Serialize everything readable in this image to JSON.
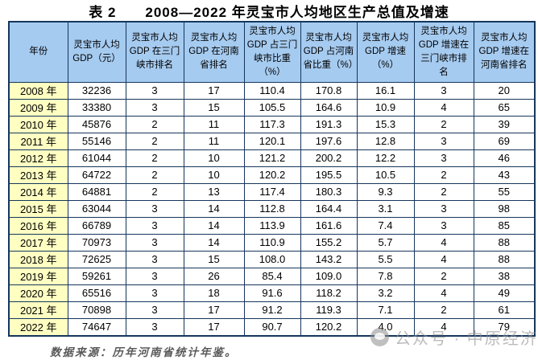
{
  "page": {
    "title": "表 2　　2008—2022 年灵宝市人均地区生产总值及增速",
    "source_note": "数据来源：历年河南省统计年鉴。",
    "watermark_text": "公众号 · 中原经济",
    "watermark_icon": "wechat-public-account-logo"
  },
  "colors": {
    "header_bg": "#a6cbf0",
    "year_column_bg": "#ffffc2",
    "grid_border": "#16365c",
    "watermark_gray": "#919191"
  },
  "table": {
    "columns": [
      "年份",
      "灵宝市人均 GDP（元）",
      "灵宝市人均 GDP 在三门峡市排名",
      "灵宝市人均 GDP 在河南省排名",
      "灵宝市人均 GDP 占三门峡市比重（%）",
      "灵宝市人均 GDP 占河南省比重（%）",
      "灵宝市人均 GDP 增速（%）",
      "灵宝市人均 GDP 增速在三门峡市排名",
      "灵宝市人均 GDP 增速在河南省排名"
    ],
    "rows": [
      [
        "2008 年",
        "32236",
        "3",
        "17",
        "110.4",
        "170.8",
        "16.1",
        "3",
        "20"
      ],
      [
        "2009 年",
        "33380",
        "3",
        "15",
        "105.5",
        "164.6",
        "10.9",
        "4",
        "65"
      ],
      [
        "2010 年",
        "45876",
        "2",
        "11",
        "117.3",
        "191.3",
        "15.3",
        "2",
        "39"
      ],
      [
        "2011 年",
        "55146",
        "2",
        "11",
        "120.1",
        "197.6",
        "12.8",
        "3",
        "69"
      ],
      [
        "2012 年",
        "61044",
        "2",
        "10",
        "121.2",
        "200.2",
        "12.2",
        "3",
        "46"
      ],
      [
        "2013 年",
        "64722",
        "2",
        "10",
        "120.2",
        "195.5",
        "10.5",
        "2",
        "43"
      ],
      [
        "2014 年",
        "64881",
        "2",
        "13",
        "117.4",
        "180.3",
        "9.3",
        "2",
        "55"
      ],
      [
        "2015 年",
        "63044",
        "3",
        "14",
        "112.8",
        "164.4",
        "3.1",
        "3",
        "98"
      ],
      [
        "2016 年",
        "66789",
        "3",
        "14",
        "113.9",
        "161.6",
        "7.4",
        "3",
        "85"
      ],
      [
        "2017 年",
        "70973",
        "3",
        "14",
        "110.9",
        "155.2",
        "5.7",
        "4",
        "88"
      ],
      [
        "2018 年",
        "72625",
        "3",
        "15",
        "108.0",
        "143.2",
        "5.5",
        "4",
        "88"
      ],
      [
        "2019 年",
        "59261",
        "3",
        "26",
        "85.4",
        "109.0",
        "7.8",
        "2",
        "38"
      ],
      [
        "2020 年",
        "65516",
        "3",
        "18",
        "91.6",
        "118.2",
        "3.2",
        "4",
        "49"
      ],
      [
        "2021 年",
        "70898",
        "3",
        "17",
        "91.2",
        "119.3",
        "7.1",
        "2",
        "61"
      ],
      [
        "2022 年",
        "74647",
        "3",
        "17",
        "90.7",
        "120.2",
        "4.0",
        "4",
        "79"
      ]
    ]
  },
  "chart_data": {
    "type": "table",
    "title": "表 2　2008—2022 年灵宝市人均地区生产总值及增速",
    "columns": [
      "年份",
      "灵宝市人均GDP（元）",
      "灵宝市人均GDP在三门峡市排名",
      "灵宝市人均GDP在河南省排名",
      "灵宝市人均GDP占三门峡市比重（%）",
      "灵宝市人均GDP占河南省比重（%）",
      "灵宝市人均GDP增速（%）",
      "灵宝市人均GDP增速在三门峡市排名",
      "灵宝市人均GDP增速在河南省排名"
    ],
    "rows": [
      [
        "2008",
        32236,
        3,
        17,
        110.4,
        170.8,
        16.1,
        3,
        20
      ],
      [
        "2009",
        33380,
        3,
        15,
        105.5,
        164.6,
        10.9,
        4,
        65
      ],
      [
        "2010",
        45876,
        2,
        11,
        117.3,
        191.3,
        15.3,
        2,
        39
      ],
      [
        "2011",
        55146,
        2,
        11,
        120.1,
        197.6,
        12.8,
        3,
        69
      ],
      [
        "2012",
        61044,
        2,
        10,
        121.2,
        200.2,
        12.2,
        3,
        46
      ],
      [
        "2013",
        64722,
        2,
        10,
        120.2,
        195.5,
        10.5,
        2,
        43
      ],
      [
        "2014",
        64881,
        2,
        13,
        117.4,
        180.3,
        9.3,
        2,
        55
      ],
      [
        "2015",
        63044,
        3,
        14,
        112.8,
        164.4,
        3.1,
        3,
        98
      ],
      [
        "2016",
        66789,
        3,
        14,
        113.9,
        161.6,
        7.4,
        3,
        85
      ],
      [
        "2017",
        70973,
        3,
        14,
        110.9,
        155.2,
        5.7,
        4,
        88
      ],
      [
        "2018",
        72625,
        3,
        15,
        108.0,
        143.2,
        5.5,
        4,
        88
      ],
      [
        "2019",
        59261,
        3,
        26,
        85.4,
        109.0,
        7.8,
        2,
        38
      ],
      [
        "2020",
        65516,
        3,
        18,
        91.6,
        118.2,
        3.2,
        4,
        49
      ],
      [
        "2021",
        70898,
        3,
        17,
        91.2,
        119.3,
        7.1,
        2,
        61
      ],
      [
        "2022",
        74647,
        3,
        17,
        90.7,
        120.2,
        4.0,
        4,
        79
      ]
    ],
    "source_note": "数据来源：历年河南省统计年鉴。"
  }
}
